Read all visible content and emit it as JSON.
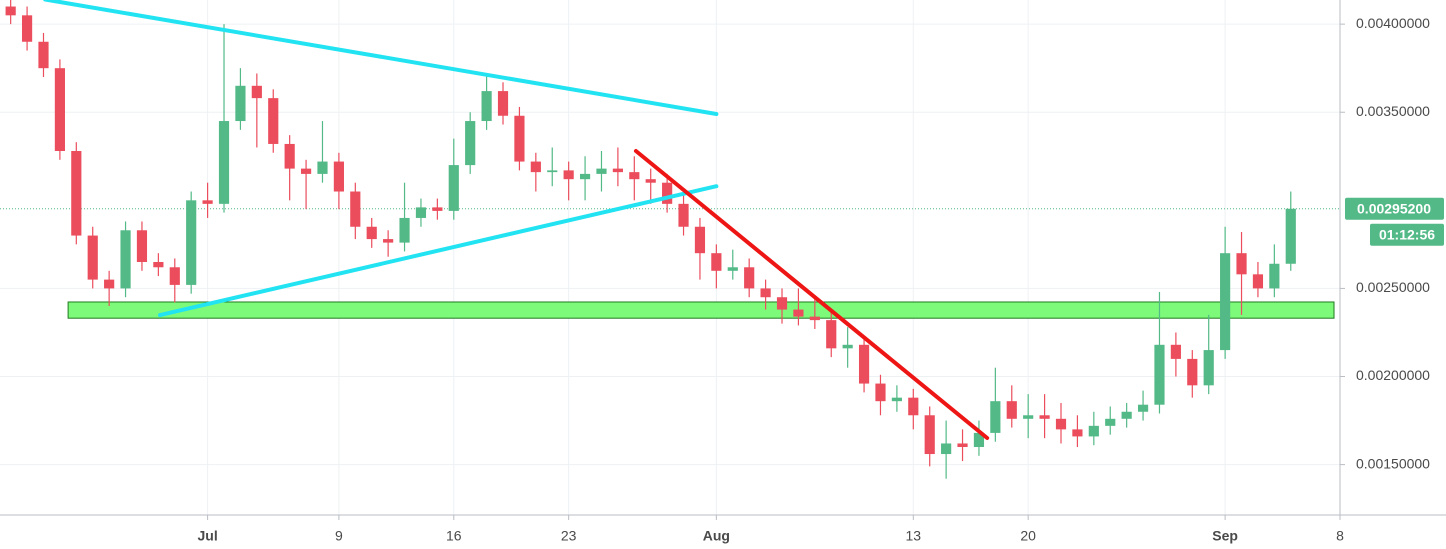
{
  "chart_data": {
    "type": "candlestick",
    "x": [
      -12,
      -11,
      -10,
      -9,
      -8,
      -7,
      -6,
      -5,
      -4,
      -3,
      -2,
      -1,
      0,
      1,
      2,
      3,
      4,
      5,
      6,
      7,
      8,
      9,
      10,
      11,
      12,
      13,
      14,
      15,
      16,
      17,
      18,
      19,
      20,
      21,
      22,
      23,
      24,
      25,
      26,
      27,
      28,
      29,
      30,
      31,
      32,
      33,
      34,
      35,
      36,
      37,
      38,
      39,
      40,
      41,
      42,
      43,
      44,
      45,
      46,
      47,
      48,
      49,
      50,
      51,
      52,
      53,
      54,
      55,
      56,
      57,
      58,
      59,
      60,
      61,
      62,
      63,
      64,
      65,
      66
    ],
    "open": [
      0.0041,
      0.00405,
      0.0039,
      0.00375,
      0.00328,
      0.0028,
      0.00255,
      0.0025,
      0.00283,
      0.00265,
      0.00262,
      0.00252,
      0.003,
      0.00298,
      0.00345,
      0.00365,
      0.00358,
      0.00332,
      0.00318,
      0.00315,
      0.00322,
      0.00305,
      0.00285,
      0.00278,
      0.00276,
      0.0029,
      0.00296,
      0.00294,
      0.0032,
      0.00345,
      0.00362,
      0.00348,
      0.00322,
      0.00316,
      0.00317,
      0.00312,
      0.00315,
      0.00318,
      0.00316,
      0.00312,
      0.0031,
      0.00298,
      0.00285,
      0.0027,
      0.0026,
      0.00262,
      0.0025,
      0.00245,
      0.00238,
      0.00234,
      0.00232,
      0.00216,
      0.00218,
      0.00196,
      0.00186,
      0.00188,
      0.00178,
      0.00156,
      0.00162,
      0.0016,
      0.00168,
      0.00186,
      0.00176,
      0.00178,
      0.00176,
      0.0017,
      0.00166,
      0.00172,
      0.00176,
      0.0018,
      0.00184,
      0.00218,
      0.0021,
      0.00195,
      0.00215,
      0.0027,
      0.00258,
      0.0025,
      0.00264
    ],
    "high": [
      0.00415,
      0.0041,
      0.00395,
      0.0038,
      0.00333,
      0.00285,
      0.0026,
      0.00288,
      0.00288,
      0.0027,
      0.00267,
      0.00305,
      0.0031,
      0.004,
      0.00375,
      0.00372,
      0.00363,
      0.00337,
      0.00323,
      0.00345,
      0.00327,
      0.0031,
      0.0029,
      0.00283,
      0.0031,
      0.00301,
      0.00301,
      0.00335,
      0.0035,
      0.00372,
      0.00367,
      0.00353,
      0.00327,
      0.0033,
      0.00322,
      0.00325,
      0.00328,
      0.0033,
      0.00325,
      0.00318,
      0.00315,
      0.00303,
      0.0029,
      0.00275,
      0.00272,
      0.00267,
      0.00255,
      0.0025,
      0.0025,
      0.00245,
      0.00237,
      0.00228,
      0.00223,
      0.00201,
      0.00195,
      0.00193,
      0.00183,
      0.00175,
      0.0017,
      0.00175,
      0.00205,
      0.00195,
      0.0019,
      0.0019,
      0.00185,
      0.00178,
      0.0018,
      0.00183,
      0.00185,
      0.00192,
      0.00248,
      0.00225,
      0.00215,
      0.00235,
      0.00285,
      0.00282,
      0.00265,
      0.00275,
      0.00305
    ],
    "low": [
      0.004,
      0.00385,
      0.0037,
      0.00323,
      0.00275,
      0.0025,
      0.0024,
      0.00245,
      0.0026,
      0.00257,
      0.00242,
      0.00247,
      0.0029,
      0.00293,
      0.0034,
      0.0033,
      0.00327,
      0.003,
      0.00295,
      0.0031,
      0.00295,
      0.00278,
      0.00273,
      0.00268,
      0.00271,
      0.00285,
      0.00289,
      0.00289,
      0.00315,
      0.0034,
      0.00343,
      0.00317,
      0.00305,
      0.00308,
      0.003,
      0.003,
      0.00305,
      0.00308,
      0.003,
      0.00298,
      0.00293,
      0.0028,
      0.00255,
      0.0025,
      0.00255,
      0.00245,
      0.00238,
      0.0023,
      0.00229,
      0.00227,
      0.00211,
      0.00205,
      0.00191,
      0.00178,
      0.0018,
      0.0017,
      0.00149,
      0.00142,
      0.00152,
      0.00155,
      0.00163,
      0.00171,
      0.00165,
      0.00165,
      0.00162,
      0.0016,
      0.00161,
      0.00167,
      0.00171,
      0.00175,
      0.00179,
      0.002,
      0.00188,
      0.0019,
      0.0021,
      0.00235,
      0.00245,
      0.00245,
      0.0026
    ],
    "close": [
      0.00405,
      0.0039,
      0.00375,
      0.00328,
      0.0028,
      0.00255,
      0.0025,
      0.00283,
      0.00265,
      0.00262,
      0.00252,
      0.003,
      0.00298,
      0.00345,
      0.00365,
      0.00358,
      0.00332,
      0.00318,
      0.00315,
      0.00322,
      0.00305,
      0.00285,
      0.00278,
      0.00276,
      0.0029,
      0.00296,
      0.00294,
      0.0032,
      0.00345,
      0.00362,
      0.00348,
      0.00322,
      0.00316,
      0.00317,
      0.00312,
      0.00315,
      0.00318,
      0.00316,
      0.00312,
      0.0031,
      0.00298,
      0.00285,
      0.0027,
      0.0026,
      0.00262,
      0.0025,
      0.00245,
      0.00238,
      0.00234,
      0.00232,
      0.00216,
      0.00218,
      0.00196,
      0.00186,
      0.00188,
      0.00178,
      0.00156,
      0.00162,
      0.0016,
      0.00168,
      0.00186,
      0.00176,
      0.00178,
      0.00176,
      0.0017,
      0.00166,
      0.00172,
      0.00176,
      0.0018,
      0.00184,
      0.00218,
      0.0021,
      0.00195,
      0.00215,
      0.0027,
      0.00258,
      0.0025,
      0.00264,
      0.002952
    ],
    "up_color": "#53b987",
    "down_color": "#eb4d5c",
    "xlim": [
      -12.65,
      69
    ],
    "xticks": [
      {
        "value": 0,
        "label": "Jul"
      },
      {
        "value": 8,
        "label": "9"
      },
      {
        "value": 15,
        "label": "16"
      },
      {
        "value": 22,
        "label": "23"
      },
      {
        "value": 31,
        "label": "Aug"
      },
      {
        "value": 43,
        "label": "13"
      },
      {
        "value": 50,
        "label": "20"
      },
      {
        "value": 62,
        "label": "Sep"
      },
      {
        "value": 69,
        "label": "8"
      }
    ],
    "ylim": [
      0.001214,
      0.004137
    ],
    "yticks": [
      {
        "value": 0.0015,
        "label": "0.00150000"
      },
      {
        "value": 0.002,
        "label": "0.00200000"
      },
      {
        "value": 0.0025,
        "label": "0.00250000"
      },
      {
        "value": 0.0035,
        "label": "0.00350000"
      },
      {
        "value": 0.004,
        "label": "0.00400000"
      }
    ],
    "grid": true,
    "last_price": {
      "value": 0.002952,
      "label": "0.00295200"
    },
    "countdown": "01:12:56",
    "zone": {
      "x0": -8.5,
      "y0": 0.002331,
      "y1": 0.002423,
      "color": "#7dfa7a"
    },
    "trendlines": [
      {
        "color": "#22e3f2",
        "x": [
          -9.9,
          31.0
        ],
        "y": [
          0.00414,
          0.00349
        ]
      },
      {
        "color": "#22e3f2",
        "x": [
          -2.9,
          31.0
        ],
        "y": [
          0.002349,
          0.00308
        ]
      },
      {
        "color": "#ee1515",
        "x": [
          26.1,
          47.5
        ],
        "y": [
          0.00328,
          0.001651
        ]
      }
    ]
  }
}
